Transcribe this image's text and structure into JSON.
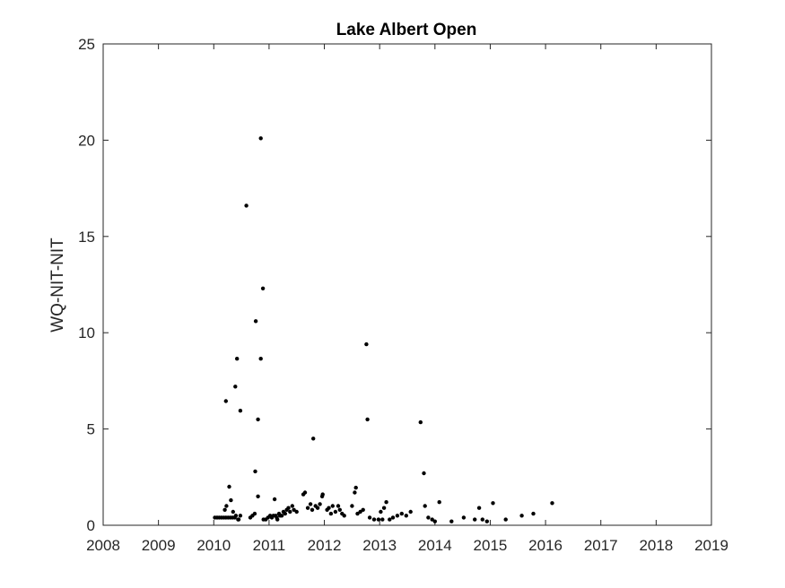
{
  "chart_data": {
    "type": "scatter",
    "title": "Lake Albert Open",
    "xlabel": "",
    "ylabel": "WQ-NIT-NIT",
    "xlim": [
      2008,
      2019
    ],
    "ylim": [
      0,
      25
    ],
    "xticks": [
      "2008",
      "2009",
      "2010",
      "2011",
      "2012",
      "2013",
      "2014",
      "2015",
      "2016",
      "2017",
      "2018",
      "2019"
    ],
    "yticks": [
      "0",
      "5",
      "10",
      "15",
      "20",
      "25"
    ],
    "grid": false,
    "box": true,
    "marker_color": "#000000",
    "points": [
      [
        2010.02,
        0.4
      ],
      [
        2010.06,
        0.4
      ],
      [
        2010.1,
        0.4
      ],
      [
        2010.14,
        0.4
      ],
      [
        2010.18,
        0.4
      ],
      [
        2010.22,
        0.4
      ],
      [
        2010.26,
        0.4
      ],
      [
        2010.3,
        0.4
      ],
      [
        2010.34,
        0.4
      ],
      [
        2010.38,
        0.4
      ],
      [
        2010.2,
        0.8
      ],
      [
        2010.23,
        1.0
      ],
      [
        2010.28,
        2.0
      ],
      [
        2010.31,
        1.3
      ],
      [
        2010.35,
        0.7
      ],
      [
        2010.4,
        0.5
      ],
      [
        2010.44,
        0.3
      ],
      [
        2010.48,
        0.5
      ],
      [
        2010.45,
        0.3
      ],
      [
        2010.22,
        6.45
      ],
      [
        2010.39,
        7.2
      ],
      [
        2010.42,
        8.65
      ],
      [
        2010.48,
        5.95
      ],
      [
        2010.59,
        16.6
      ],
      [
        2010.66,
        0.4
      ],
      [
        2010.7,
        0.5
      ],
      [
        2010.74,
        0.6
      ],
      [
        2010.75,
        2.8
      ],
      [
        2010.76,
        10.6
      ],
      [
        2010.8,
        5.5
      ],
      [
        2010.8,
        1.5
      ],
      [
        2010.85,
        8.65
      ],
      [
        2010.85,
        20.1
      ],
      [
        2010.89,
        12.3
      ],
      [
        2010.9,
        0.3
      ],
      [
        2010.94,
        0.3
      ],
      [
        2010.98,
        0.4
      ],
      [
        2011.02,
        0.5
      ],
      [
        2011.05,
        0.4
      ],
      [
        2011.08,
        0.5
      ],
      [
        2011.12,
        0.5
      ],
      [
        2011.14,
        0.4
      ],
      [
        2011.15,
        0.3
      ],
      [
        2011.18,
        0.6
      ],
      [
        2011.2,
        0.5
      ],
      [
        2011.23,
        0.5
      ],
      [
        2011.26,
        0.7
      ],
      [
        2011.29,
        0.6
      ],
      [
        2011.32,
        0.8
      ],
      [
        2011.35,
        0.9
      ],
      [
        2011.38,
        0.7
      ],
      [
        2011.42,
        1.0
      ],
      [
        2011.45,
        0.8
      ],
      [
        2011.5,
        0.7
      ],
      [
        2011.1,
        1.35
      ],
      [
        2011.62,
        1.6
      ],
      [
        2011.65,
        1.7
      ],
      [
        2011.7,
        0.9
      ],
      [
        2011.75,
        1.1
      ],
      [
        2011.78,
        0.8
      ],
      [
        2011.8,
        4.5
      ],
      [
        2011.84,
        1.0
      ],
      [
        2011.88,
        0.9
      ],
      [
        2011.92,
        1.1
      ],
      [
        2011.96,
        1.5
      ],
      [
        2011.97,
        1.6
      ],
      [
        2012.05,
        0.8
      ],
      [
        2012.08,
        0.9
      ],
      [
        2012.12,
        0.6
      ],
      [
        2012.15,
        1.0
      ],
      [
        2012.2,
        0.7
      ],
      [
        2012.25,
        1.0
      ],
      [
        2012.28,
        0.8
      ],
      [
        2012.32,
        0.6
      ],
      [
        2012.36,
        0.5
      ],
      [
        2012.5,
        1.0
      ],
      [
        2012.55,
        1.7
      ],
      [
        2012.57,
        1.95
      ],
      [
        2012.6,
        0.6
      ],
      [
        2012.65,
        0.7
      ],
      [
        2012.7,
        0.8
      ],
      [
        2012.76,
        9.4
      ],
      [
        2012.78,
        5.5
      ],
      [
        2012.82,
        0.4
      ],
      [
        2012.9,
        0.3
      ],
      [
        2012.98,
        0.3
      ],
      [
        2013.02,
        0.7
      ],
      [
        2013.05,
        0.3
      ],
      [
        2013.08,
        0.9
      ],
      [
        2013.12,
        1.2
      ],
      [
        2013.18,
        0.3
      ],
      [
        2013.24,
        0.4
      ],
      [
        2013.32,
        0.5
      ],
      [
        2013.4,
        0.6
      ],
      [
        2013.48,
        0.5
      ],
      [
        2013.56,
        0.7
      ],
      [
        2013.74,
        5.35
      ],
      [
        2013.8,
        2.7
      ],
      [
        2013.82,
        1.0
      ],
      [
        2013.88,
        0.4
      ],
      [
        2013.95,
        0.3
      ],
      [
        2014.0,
        0.2
      ],
      [
        2014.08,
        1.2
      ],
      [
        2014.3,
        0.2
      ],
      [
        2014.52,
        0.4
      ],
      [
        2014.72,
        0.3
      ],
      [
        2014.8,
        0.9
      ],
      [
        2014.86,
        0.3
      ],
      [
        2014.94,
        0.2
      ],
      [
        2015.05,
        1.15
      ],
      [
        2015.28,
        0.3
      ],
      [
        2015.57,
        0.5
      ],
      [
        2015.78,
        0.6
      ],
      [
        2016.12,
        1.15
      ]
    ]
  }
}
